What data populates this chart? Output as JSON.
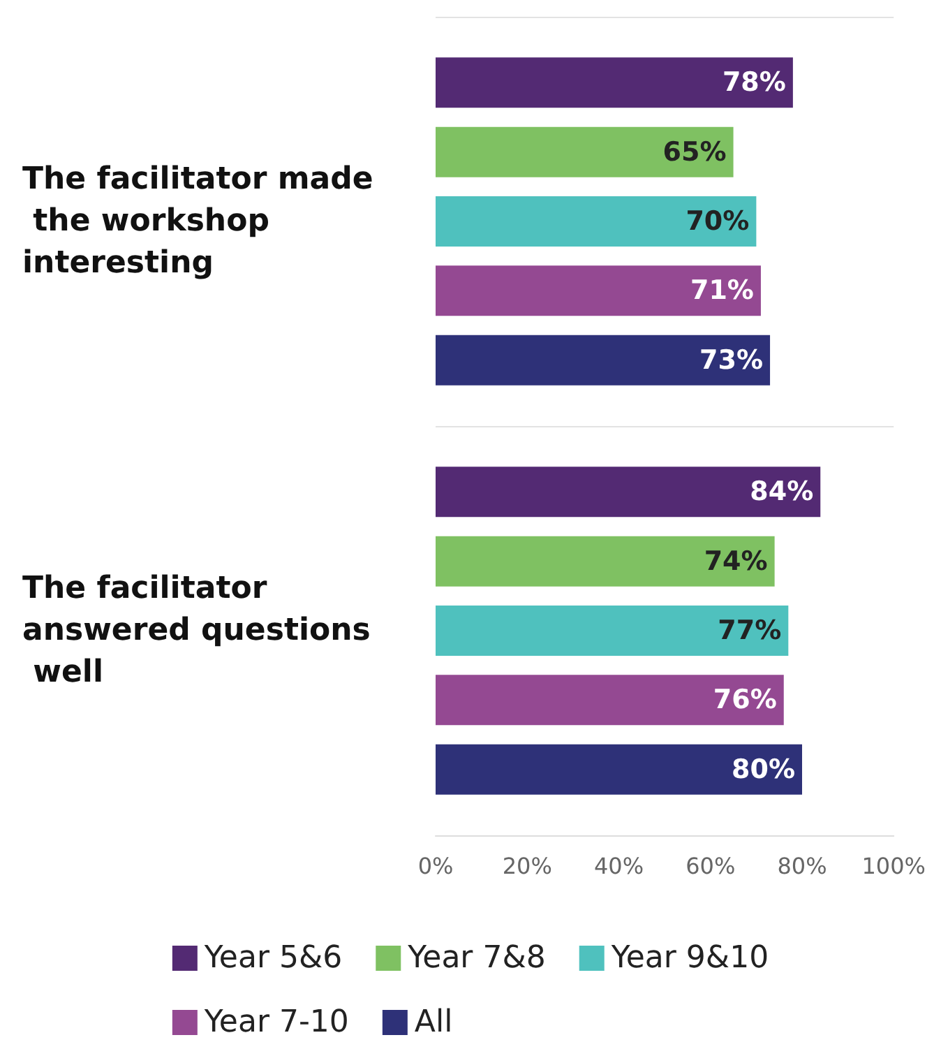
{
  "chart_data": {
    "type": "bar",
    "orientation": "horizontal",
    "categories": [
      "The facilitator made the workshop interesting",
      "The facilitator answered questions well"
    ],
    "series": [
      {
        "name": "Year 5&6",
        "color": "#532a73",
        "values": [
          78,
          84
        ],
        "value_labels": [
          "78%",
          "84%"
        ]
      },
      {
        "name": "Year 7&8",
        "color": "#7fc162",
        "values": [
          65,
          74
        ],
        "value_labels": [
          "65%",
          "74%"
        ]
      },
      {
        "name": "Year 9&10",
        "color": "#4fc1be",
        "values": [
          70,
          77
        ],
        "value_labels": [
          "70%",
          "77%"
        ]
      },
      {
        "name": "Year 7-10",
        "color": "#944992",
        "values": [
          71,
          76
        ],
        "value_labels": [
          "71%",
          "76%"
        ]
      },
      {
        "name": "All",
        "color": "#2e3178",
        "values": [
          73,
          80
        ],
        "value_labels": [
          "73%",
          "80%"
        ]
      }
    ],
    "xlim": [
      0,
      100
    ],
    "xticks": [
      {
        "value": 0,
        "label": "0%"
      },
      {
        "value": 20,
        "label": "20%"
      },
      {
        "value": 40,
        "label": "40%"
      },
      {
        "value": 60,
        "label": "60%"
      },
      {
        "value": 80,
        "label": "80%"
      },
      {
        "value": 100,
        "label": "100%"
      }
    ],
    "grid": "y",
    "legend": "bottom"
  }
}
